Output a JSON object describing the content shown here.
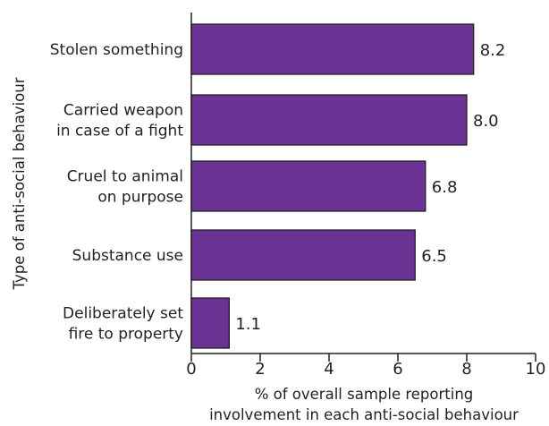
{
  "chart_data": {
    "type": "bar",
    "orientation": "horizontal",
    "categories": [
      [
        "Stolen something"
      ],
      [
        "Carried weapon",
        "in case of a fight"
      ],
      [
        "Cruel to animal",
        "on purpose"
      ],
      [
        "Substance use"
      ],
      [
        "Deliberately set",
        "fire to property"
      ]
    ],
    "values": [
      8.2,
      8.0,
      6.8,
      6.5,
      1.1
    ],
    "value_labels": [
      "8.2",
      "8.0",
      "6.8",
      "6.5",
      "1.1"
    ],
    "xlabel": [
      "% of overall sample reporting",
      "involvement in each anti-social behaviour"
    ],
    "ylabel": "Type of anti-social behaviour",
    "xlim": [
      0,
      10
    ],
    "xticks": [
      0,
      2,
      4,
      6,
      8,
      10
    ],
    "grid": false,
    "colors": {
      "bar_fill": "#6b3394",
      "bar_stroke": "#231f20",
      "axis": "#231f20"
    }
  }
}
